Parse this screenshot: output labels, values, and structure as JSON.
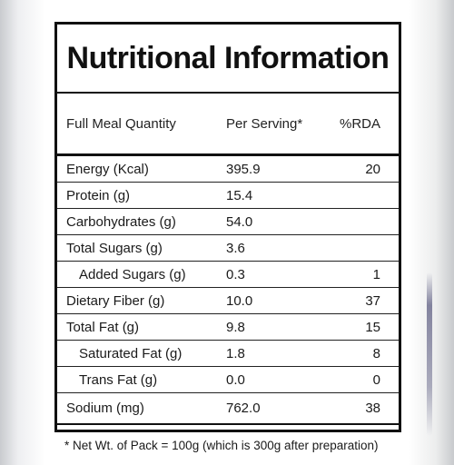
{
  "title": "Nutritional Information",
  "header": {
    "name": "Full Meal Quantity",
    "serving": "Per Serving*",
    "rda": "%RDA"
  },
  "rows": [
    {
      "name": "Energy (Kcal)",
      "serving": "395.9",
      "rda": "20"
    },
    {
      "name": "Protein (g)",
      "serving": "15.4",
      "rda": ""
    },
    {
      "name": "Carbohydrates (g)",
      "serving": "54.0",
      "rda": ""
    },
    {
      "name": "Total Sugars (g)",
      "serving": "3.6",
      "rda": ""
    },
    {
      "name": "Added Sugars (g)",
      "serving": "0.3",
      "rda": "1"
    },
    {
      "name": "Dietary Fiber (g)",
      "serving": "10.0",
      "rda": "37"
    },
    {
      "name": "Total Fat (g)",
      "serving": "9.8",
      "rda": "15"
    },
    {
      "name": "Saturated Fat (g)",
      "serving": "1.8",
      "rda": "8"
    },
    {
      "name": "Trans Fat (g)",
      "serving": "0.0",
      "rda": "0"
    },
    {
      "name": "Sodium (mg)",
      "serving": "762.0",
      "rda": "38"
    }
  ],
  "footnote": "* Net Wt. of Pack = 100g (which is 300g after preparation)"
}
